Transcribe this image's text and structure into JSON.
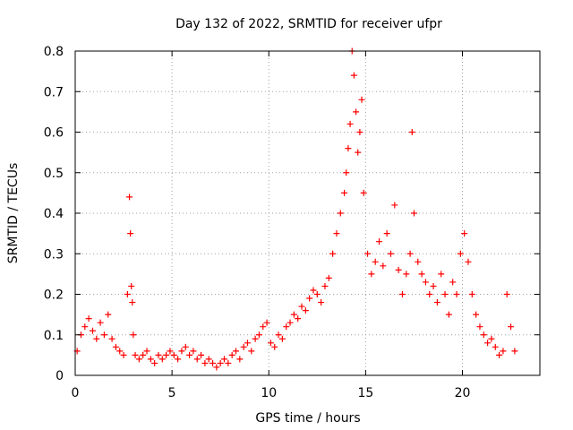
{
  "chart_data": {
    "type": "scatter",
    "title": "Day 132 of 2022, SRMTID for receiver ufpr",
    "xlabel": "GPS time / hours",
    "ylabel": "SRMTID / TECUs",
    "xlim": [
      0,
      24
    ],
    "ylim": [
      0,
      0.8
    ],
    "xticks": [
      0,
      5,
      10,
      15,
      20
    ],
    "yticks": [
      0,
      0.1,
      0.2,
      0.3,
      0.4,
      0.5,
      0.6,
      0.7,
      0.8
    ],
    "ytick_labels": [
      "0",
      "0.1",
      "0.2",
      "0.3",
      "0.4",
      "0.5",
      "0.6",
      "0.7",
      "0.8"
    ],
    "xtick_labels": [
      "0",
      "5",
      "10",
      "15",
      "20"
    ],
    "grid": true,
    "marker": "+",
    "series_color": "#ff0000",
    "series": [
      {
        "name": "SRMTID",
        "x": [
          0.1,
          0.3,
          0.5,
          0.7,
          0.9,
          1.1,
          1.3,
          1.5,
          1.7,
          1.9,
          2.1,
          2.3,
          2.5,
          2.7,
          2.8,
          2.85,
          2.9,
          2.95,
          3.0,
          3.1,
          3.3,
          3.5,
          3.7,
          3.9,
          4.1,
          4.3,
          4.5,
          4.7,
          4.9,
          5.1,
          5.3,
          5.5,
          5.7,
          5.9,
          6.1,
          6.3,
          6.5,
          6.7,
          6.9,
          7.1,
          7.3,
          7.5,
          7.7,
          7.9,
          8.1,
          8.3,
          8.5,
          8.7,
          8.9,
          9.1,
          9.3,
          9.5,
          9.7,
          9.9,
          10.1,
          10.3,
          10.5,
          10.7,
          10.9,
          11.1,
          11.3,
          11.5,
          11.7,
          11.9,
          12.1,
          12.3,
          12.5,
          12.7,
          12.9,
          13.1,
          13.3,
          13.5,
          13.7,
          13.9,
          14.0,
          14.1,
          14.2,
          14.3,
          14.4,
          14.5,
          14.6,
          14.7,
          14.8,
          14.9,
          15.1,
          15.3,
          15.5,
          15.7,
          15.9,
          16.1,
          16.3,
          16.5,
          16.7,
          16.9,
          17.1,
          17.3,
          17.4,
          17.5,
          17.7,
          17.9,
          18.1,
          18.3,
          18.5,
          18.7,
          18.9,
          19.1,
          19.3,
          19.5,
          19.7,
          19.9,
          20.1,
          20.3,
          20.5,
          20.7,
          20.9,
          21.1,
          21.3,
          21.5,
          21.7,
          21.9,
          22.1,
          22.3,
          22.5,
          22.7
        ],
        "values": [
          0.06,
          0.1,
          0.12,
          0.14,
          0.11,
          0.09,
          0.13,
          0.1,
          0.15,
          0.09,
          0.07,
          0.06,
          0.05,
          0.2,
          0.44,
          0.35,
          0.22,
          0.18,
          0.1,
          0.05,
          0.04,
          0.05,
          0.06,
          0.04,
          0.03,
          0.05,
          0.04,
          0.05,
          0.06,
          0.05,
          0.04,
          0.06,
          0.07,
          0.05,
          0.06,
          0.04,
          0.05,
          0.03,
          0.04,
          0.03,
          0.02,
          0.03,
          0.04,
          0.03,
          0.05,
          0.06,
          0.04,
          0.07,
          0.08,
          0.06,
          0.09,
          0.1,
          0.12,
          0.13,
          0.08,
          0.07,
          0.1,
          0.09,
          0.12,
          0.13,
          0.15,
          0.14,
          0.17,
          0.16,
          0.19,
          0.21,
          0.2,
          0.18,
          0.22,
          0.24,
          0.3,
          0.35,
          0.4,
          0.45,
          0.5,
          0.56,
          0.62,
          0.8,
          0.74,
          0.65,
          0.55,
          0.6,
          0.68,
          0.45,
          0.3,
          0.25,
          0.28,
          0.33,
          0.27,
          0.35,
          0.3,
          0.42,
          0.26,
          0.2,
          0.25,
          0.3,
          0.6,
          0.4,
          0.28,
          0.25,
          0.23,
          0.2,
          0.22,
          0.18,
          0.25,
          0.2,
          0.15,
          0.23,
          0.2,
          0.3,
          0.35,
          0.28,
          0.2,
          0.15,
          0.12,
          0.1,
          0.08,
          0.09,
          0.07,
          0.05,
          0.06,
          0.2,
          0.12,
          0.06
        ]
      }
    ]
  }
}
